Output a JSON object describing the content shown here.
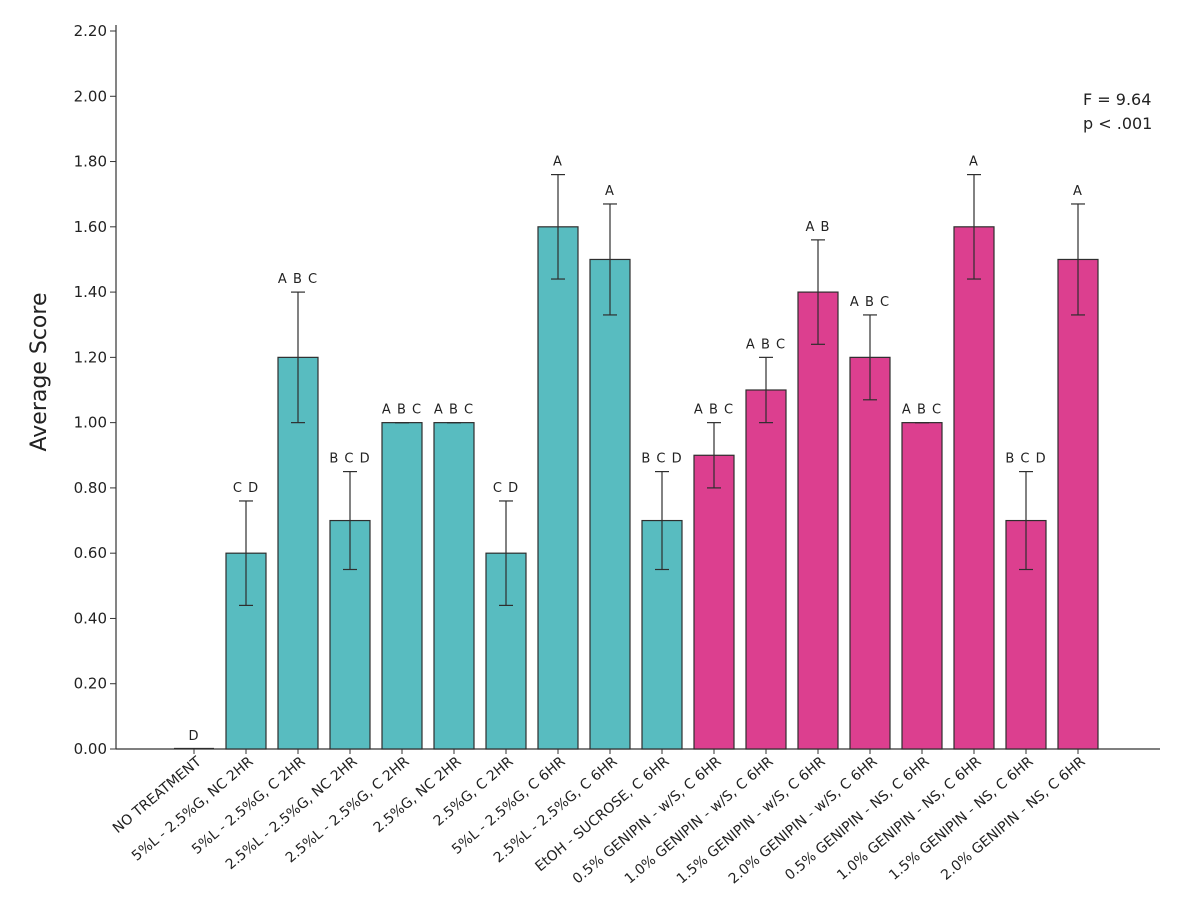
{
  "chart_data": {
    "type": "bar",
    "title": "",
    "xlabel": "",
    "ylabel": "Average Score",
    "ylim": [
      0,
      2.2
    ],
    "yticks": [
      "0.00",
      "0.20",
      "0.40",
      "0.60",
      "0.80",
      "1.00",
      "1.20",
      "1.40",
      "1.60",
      "1.80",
      "2.00",
      "2.20"
    ],
    "grid": false,
    "annotations": [
      "F = 9.64",
      "p < .001"
    ],
    "colors": {
      "group1": "#58bcc0",
      "group2": "#dc3f8f"
    },
    "categories": [
      "NO TREATMENT",
      "5%L - 2.5%G, NC 2HR",
      "5%L - 2.5%G, C 2HR",
      "2.5%L - 2.5%G, NC 2HR",
      "2.5%L - 2.5%G, C 2HR",
      "2.5%G, NC 2HR",
      "2.5%G, C 2HR",
      "5%L - 2.5%G, C 6HR",
      "2.5%L - 2.5%G, C 6HR",
      "EtOH - SUCROSE, C 6HR",
      "0.5% GENIPIN - w/S, C 6HR",
      "1.0% GENIPIN - w/S, C 6HR",
      "1.5% GENIPIN - w/S, C 6HR",
      "2.0% GENIPIN - w/S, C 6HR",
      "0.5% GENIPIN - NS, C 6HR",
      "1.0% GENIPIN - NS, C 6HR",
      "1.5% GENIPIN - NS, C 6HR",
      "2.0% GENIPIN - NS, C 6HR"
    ],
    "values": [
      0.0,
      0.6,
      1.2,
      0.7,
      1.0,
      1.0,
      0.6,
      1.6,
      1.5,
      0.7,
      0.9,
      1.1,
      1.4,
      1.2,
      1.0,
      1.6,
      0.7,
      1.5
    ],
    "error_low": [
      0.0,
      0.44,
      1.0,
      0.55,
      1.0,
      1.0,
      0.44,
      1.44,
      1.33,
      0.55,
      0.8,
      1.0,
      1.24,
      1.07,
      1.0,
      1.44,
      0.55,
      1.33
    ],
    "error_high": [
      0.0,
      0.76,
      1.4,
      0.85,
      1.0,
      1.0,
      0.76,
      1.76,
      1.67,
      0.85,
      1.0,
      1.2,
      1.56,
      1.33,
      1.0,
      1.76,
      0.85,
      1.67
    ],
    "groups": [
      "group1",
      "group1",
      "group1",
      "group1",
      "group1",
      "group1",
      "group1",
      "group1",
      "group1",
      "group1",
      "group2",
      "group2",
      "group2",
      "group2",
      "group2",
      "group2",
      "group2",
      "group2"
    ],
    "significance": [
      "D",
      "C D",
      "A B C",
      "B C D",
      "A B C",
      "A B C",
      "C D",
      "A",
      "A",
      "B C D",
      "A B C",
      "A B C",
      "A B",
      "A B C",
      "A B C",
      "A",
      "B C D",
      "A"
    ]
  }
}
